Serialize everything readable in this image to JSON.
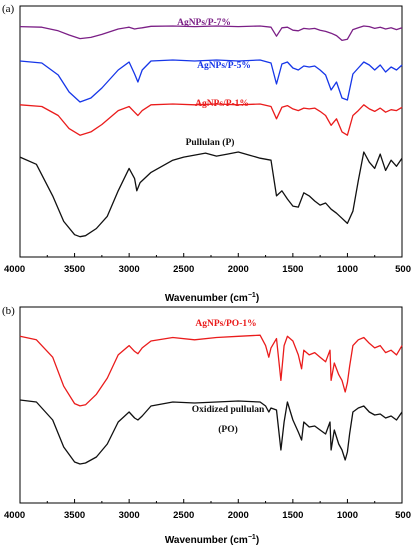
{
  "chart_data": [
    {
      "type": "line",
      "panel_label": "(a)",
      "xlabel": "Wavenumber (cm",
      "xlabel_superscript": "−1",
      "xlabel_close": ")",
      "xlim": [
        4000,
        500
      ],
      "x_reversed": true,
      "x_ticks": [
        4000,
        3500,
        3000,
        2500,
        2000,
        1500,
        1000,
        500
      ],
      "grid": false,
      "legend": "inline labels above each trace",
      "series": [
        {
          "name": "AgNPs/P-7%",
          "color": "#7b1f86",
          "x": [
            4000,
            3800,
            3650,
            3550,
            3450,
            3350,
            3250,
            3100,
            3000,
            2950,
            2920,
            2880,
            2800,
            2600,
            2400,
            2200,
            2000,
            1800,
            1700,
            1650,
            1600,
            1550,
            1500,
            1450,
            1400,
            1350,
            1300,
            1250,
            1200,
            1150,
            1100,
            1050,
            1000,
            950,
            900,
            850,
            800,
            750,
            700,
            650,
            600,
            550,
            500
          ],
          "y": [
            0.99,
            0.98,
            0.92,
            0.85,
            0.79,
            0.81,
            0.86,
            0.95,
            0.98,
            0.95,
            0.96,
            0.97,
            0.995,
            1.0,
            0.99,
            1.0,
            0.99,
            1.0,
            0.98,
            0.83,
            0.97,
            0.98,
            0.93,
            0.92,
            0.96,
            0.95,
            0.96,
            0.93,
            0.91,
            0.88,
            0.84,
            0.76,
            0.78,
            0.94,
            0.97,
            1.0,
            0.99,
            0.96,
            0.98,
            0.95,
            0.97,
            0.94,
            0.97
          ]
        },
        {
          "name": "AgNPs/P-5%",
          "color": "#1636e8",
          "x": [
            4000,
            3800,
            3650,
            3550,
            3450,
            3350,
            3250,
            3100,
            3000,
            2950,
            2920,
            2880,
            2800,
            2600,
            2400,
            2200,
            2000,
            1800,
            1700,
            1650,
            1600,
            1550,
            1500,
            1450,
            1400,
            1350,
            1300,
            1250,
            1200,
            1150,
            1100,
            1050,
            1000,
            950,
            900,
            850,
            800,
            750,
            700,
            650,
            600,
            550,
            500
          ],
          "y": [
            0.99,
            0.97,
            0.85,
            0.68,
            0.58,
            0.62,
            0.72,
            0.9,
            0.98,
            0.86,
            0.78,
            0.9,
            0.99,
            1.0,
            0.99,
            1.0,
            0.99,
            1.0,
            0.97,
            0.76,
            0.96,
            0.98,
            0.92,
            0.9,
            0.94,
            0.93,
            0.94,
            0.9,
            0.85,
            0.7,
            0.78,
            0.62,
            0.6,
            0.86,
            0.92,
            0.98,
            0.95,
            0.9,
            0.95,
            0.88,
            0.93,
            0.9,
            0.95
          ]
        },
        {
          "name": "AgNPs/P-1%",
          "color": "#ea1c1c",
          "x": [
            4000,
            3800,
            3650,
            3550,
            3450,
            3350,
            3250,
            3100,
            3000,
            2950,
            2920,
            2880,
            2800,
            2600,
            2400,
            2200,
            2000,
            1800,
            1700,
            1650,
            1600,
            1550,
            1500,
            1450,
            1400,
            1350,
            1300,
            1250,
            1200,
            1150,
            1100,
            1050,
            1000,
            950,
            900,
            850,
            800,
            750,
            700,
            650,
            600,
            550,
            500
          ],
          "y": [
            0.99,
            0.97,
            0.86,
            0.7,
            0.62,
            0.66,
            0.75,
            0.92,
            0.97,
            0.9,
            0.86,
            0.92,
            0.99,
            1.0,
            0.99,
            1.0,
            0.99,
            1.0,
            0.97,
            0.82,
            0.96,
            0.98,
            0.94,
            0.92,
            0.95,
            0.94,
            0.95,
            0.91,
            0.86,
            0.74,
            0.82,
            0.66,
            0.62,
            0.86,
            0.92,
            0.99,
            0.94,
            0.91,
            0.95,
            0.9,
            0.93,
            0.92,
            0.96
          ]
        },
        {
          "name": "Pullulan (P)",
          "color": "#111111",
          "x": [
            4000,
            3850,
            3700,
            3600,
            3500,
            3450,
            3400,
            3300,
            3200,
            3100,
            3000,
            2950,
            2930,
            2900,
            2800,
            2700,
            2600,
            2500,
            2400,
            2300,
            2200,
            2100,
            2000,
            1900,
            1800,
            1700,
            1650,
            1600,
            1550,
            1500,
            1450,
            1400,
            1350,
            1300,
            1250,
            1200,
            1150,
            1100,
            1050,
            1000,
            950,
            900,
            850,
            800,
            750,
            700,
            650,
            600,
            550,
            500
          ],
          "y": [
            0.93,
            0.86,
            0.55,
            0.3,
            0.17,
            0.15,
            0.16,
            0.23,
            0.35,
            0.6,
            0.82,
            0.72,
            0.6,
            0.68,
            0.78,
            0.84,
            0.9,
            0.93,
            0.95,
            0.97,
            0.94,
            0.96,
            0.98,
            0.95,
            0.92,
            0.9,
            0.55,
            0.6,
            0.52,
            0.45,
            0.44,
            0.58,
            0.55,
            0.5,
            0.46,
            0.48,
            0.42,
            0.38,
            0.33,
            0.28,
            0.4,
            0.7,
            0.98,
            0.88,
            0.82,
            0.96,
            0.8,
            0.9,
            0.84,
            0.92
          ]
        }
      ]
    },
    {
      "type": "line",
      "panel_label": "(b)",
      "xlabel": "Wavenumber (cm",
      "xlabel_superscript": "−1",
      "xlabel_close": ")",
      "xlim": [
        4000,
        500
      ],
      "x_reversed": true,
      "x_ticks": [
        4000,
        3500,
        3000,
        2500,
        2000,
        1500,
        1000,
        500
      ],
      "grid": false,
      "legend": "inline labels above each trace",
      "series": [
        {
          "name": "AgNPs/PO-1%",
          "color": "#ea1c1c",
          "x": [
            4000,
            3850,
            3700,
            3600,
            3500,
            3450,
            3400,
            3300,
            3200,
            3100,
            3000,
            2950,
            2920,
            2880,
            2800,
            2600,
            2400,
            2200,
            2000,
            1800,
            1750,
            1720,
            1700,
            1650,
            1610,
            1580,
            1550,
            1500,
            1450,
            1420,
            1400,
            1350,
            1300,
            1250,
            1200,
            1160,
            1150,
            1120,
            1080,
            1050,
            1020,
            1000,
            980,
            950,
            900,
            850,
            800,
            750,
            700,
            650,
            600,
            550,
            500
          ],
          "y": [
            0.98,
            0.95,
            0.8,
            0.55,
            0.4,
            0.38,
            0.39,
            0.48,
            0.62,
            0.82,
            0.9,
            0.85,
            0.83,
            0.88,
            0.94,
            0.97,
            0.95,
            0.97,
            0.98,
            0.99,
            0.9,
            0.8,
            0.88,
            0.96,
            0.6,
            0.9,
            0.98,
            0.94,
            0.82,
            0.7,
            0.86,
            0.82,
            0.84,
            0.8,
            0.76,
            0.86,
            0.6,
            0.75,
            0.65,
            0.6,
            0.5,
            0.58,
            0.72,
            0.9,
            0.95,
            0.97,
            0.92,
            0.88,
            0.9,
            0.84,
            0.86,
            0.82,
            0.9
          ]
        },
        {
          "name": "Oxidized pullulan (PO)",
          "color": "#111111",
          "x": [
            4000,
            3850,
            3700,
            3600,
            3500,
            3450,
            3400,
            3300,
            3200,
            3100,
            3000,
            2950,
            2920,
            2880,
            2800,
            2600,
            2400,
            2200,
            2000,
            1800,
            1750,
            1720,
            1700,
            1650,
            1610,
            1580,
            1550,
            1500,
            1450,
            1420,
            1400,
            1350,
            1300,
            1250,
            1200,
            1160,
            1150,
            1120,
            1080,
            1050,
            1020,
            1000,
            980,
            950,
            900,
            850,
            800,
            750,
            700,
            650,
            600,
            550,
            500
          ],
          "y": [
            0.92,
            0.9,
            0.72,
            0.45,
            0.3,
            0.28,
            0.29,
            0.35,
            0.48,
            0.7,
            0.8,
            0.74,
            0.72,
            0.76,
            0.86,
            0.9,
            0.89,
            0.9,
            0.91,
            0.9,
            0.86,
            0.8,
            0.84,
            0.82,
            0.42,
            0.7,
            0.9,
            0.72,
            0.6,
            0.52,
            0.7,
            0.65,
            0.66,
            0.62,
            0.58,
            0.7,
            0.42,
            0.62,
            0.48,
            0.42,
            0.32,
            0.4,
            0.58,
            0.8,
            0.84,
            0.86,
            0.8,
            0.77,
            0.78,
            0.74,
            0.76,
            0.72,
            0.8
          ]
        }
      ]
    }
  ],
  "labels": {
    "a_pullulan_line2": "",
    "b_po_line1": "Oxidized pullulan",
    "b_po_line2": "(PO)"
  }
}
